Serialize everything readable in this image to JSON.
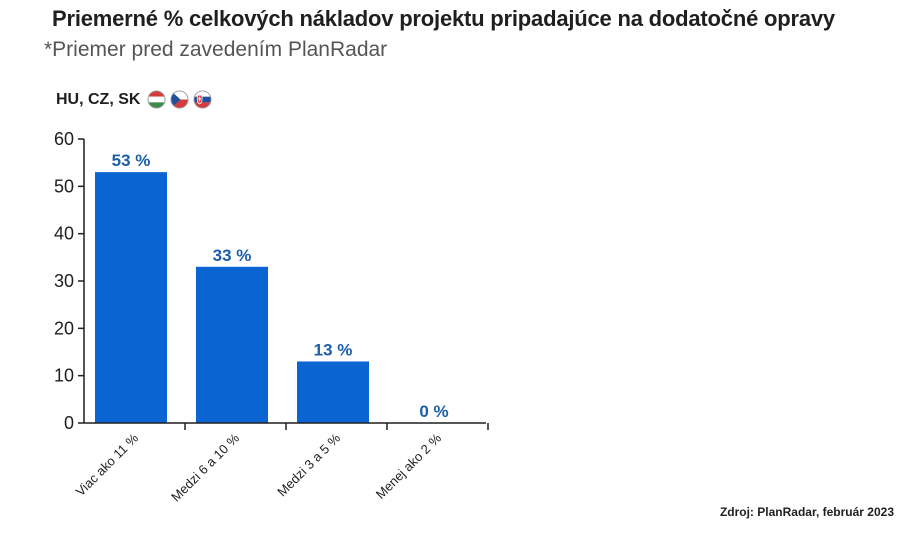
{
  "header": {
    "title": "Priemerné % celkových nákladov projektu pripadajúce na dodatočné opravy",
    "subtitle": "*Priemer pred zavedením PlanRadar"
  },
  "region": {
    "label": "HU, CZ, SK",
    "flags": [
      "hungary-flag-icon",
      "czech-flag-icon",
      "slovakia-flag-icon"
    ]
  },
  "source": "Zdroj: PlanRadar, február 2023",
  "colors": {
    "bar": "#0a64d2",
    "label": "#1c5fa8",
    "axis": "#1f1f1f"
  },
  "chart_data": {
    "type": "bar",
    "categories": [
      "Viac ako 11 %",
      "Medzi 6 a 10 %",
      "Medzi 3 a 5 %",
      "Menej ako 2 %"
    ],
    "values": [
      53,
      33,
      13,
      0
    ],
    "data_labels": [
      "53 %",
      "33 %",
      "13 %",
      "0 %"
    ],
    "yticks": [
      0,
      10,
      20,
      30,
      40,
      50,
      60
    ],
    "ylim": [
      0,
      60
    ],
    "grid": false,
    "legend": "none"
  }
}
